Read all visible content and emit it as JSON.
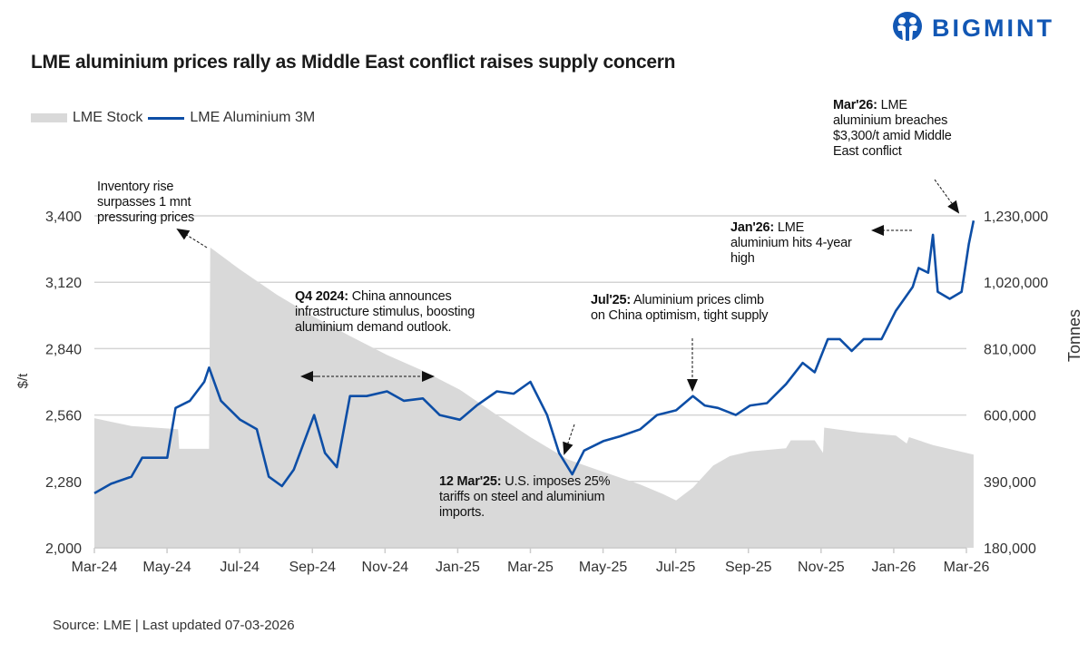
{
  "brand": {
    "name": "BIGMINT",
    "color": "#1257b4"
  },
  "title": "LME aluminium prices rally as Middle East conflict raises supply concern",
  "source": "Source: LME | Last updated 07-03-2026",
  "chart_data": {
    "type": "line+area",
    "title": "LME aluminium prices rally as Middle East conflict raises supply concern",
    "grid": true,
    "legend_placement": "top-left",
    "legend": [
      "LME Stock",
      "LME Aluminium 3M"
    ],
    "ylabel": "$/t",
    "y2label": "Tonnes",
    "ylim": [
      2000,
      3400
    ],
    "y2lim": [
      180000,
      1230000
    ],
    "yticks": [
      "2,000",
      "2,280",
      "2,560",
      "2,840",
      "3,120",
      "3,400"
    ],
    "y2ticks": [
      "180,000",
      "390,000",
      "600,000",
      "810,000",
      "1,020,000",
      "1,230,000"
    ],
    "xlim": [
      "2024-03-01",
      "2026-03-07"
    ],
    "xticks": [
      "Mar-24",
      "May-24",
      "Jul-24",
      "Sep-24",
      "Nov-24",
      "Jan-25",
      "Mar-25",
      "May-25",
      "Jul-25",
      "Sep-25",
      "Nov-25",
      "Jan-26",
      "Mar-26"
    ],
    "colors": {
      "price": "#0d4ea6",
      "stock": "#d9d9d9",
      "grid": "#d4d4d4"
    },
    "series": [
      {
        "name": "LME Aluminium 3M",
        "axis": "left",
        "kind": "line",
        "points": [
          [
            "2024-03-01",
            2230
          ],
          [
            "2024-03-15",
            2270
          ],
          [
            "2024-04-01",
            2300
          ],
          [
            "2024-04-10",
            2380
          ],
          [
            "2024-05-01",
            2380
          ],
          [
            "2024-05-08",
            2590
          ],
          [
            "2024-05-20",
            2620
          ],
          [
            "2024-06-01",
            2700
          ],
          [
            "2024-06-05",
            2760
          ],
          [
            "2024-06-15",
            2620
          ],
          [
            "2024-07-01",
            2540
          ],
          [
            "2024-07-15",
            2500
          ],
          [
            "2024-07-25",
            2300
          ],
          [
            "2024-08-05",
            2260
          ],
          [
            "2024-08-15",
            2330
          ],
          [
            "2024-09-01",
            2560
          ],
          [
            "2024-09-10",
            2400
          ],
          [
            "2024-09-20",
            2340
          ],
          [
            "2024-10-01",
            2640
          ],
          [
            "2024-10-15",
            2640
          ],
          [
            "2024-11-01",
            2660
          ],
          [
            "2024-11-15",
            2620
          ],
          [
            "2024-12-01",
            2630
          ],
          [
            "2024-12-15",
            2560
          ],
          [
            "2025-01-01",
            2540
          ],
          [
            "2025-01-15",
            2600
          ],
          [
            "2025-02-01",
            2660
          ],
          [
            "2025-02-15",
            2650
          ],
          [
            "2025-03-01",
            2700
          ],
          [
            "2025-03-15",
            2560
          ],
          [
            "2025-03-25",
            2400
          ],
          [
            "2025-04-05",
            2310
          ],
          [
            "2025-04-15",
            2410
          ],
          [
            "2025-05-01",
            2450
          ],
          [
            "2025-05-15",
            2470
          ],
          [
            "2025-06-01",
            2500
          ],
          [
            "2025-06-15",
            2560
          ],
          [
            "2025-07-01",
            2580
          ],
          [
            "2025-07-15",
            2640
          ],
          [
            "2025-07-25",
            2600
          ],
          [
            "2025-08-05",
            2590
          ],
          [
            "2025-08-20",
            2560
          ],
          [
            "2025-09-01",
            2600
          ],
          [
            "2025-09-15",
            2610
          ],
          [
            "2025-10-01",
            2690
          ],
          [
            "2025-10-15",
            2780
          ],
          [
            "2025-10-25",
            2740
          ],
          [
            "2025-11-05",
            2880
          ],
          [
            "2025-11-15",
            2880
          ],
          [
            "2025-11-25",
            2830
          ],
          [
            "2025-12-05",
            2880
          ],
          [
            "2025-12-20",
            2880
          ],
          [
            "2026-01-01",
            3000
          ],
          [
            "2026-01-15",
            3100
          ],
          [
            "2026-01-20",
            3180
          ],
          [
            "2026-01-28",
            3160
          ],
          [
            "2026-02-01",
            3320
          ],
          [
            "2026-02-05",
            3080
          ],
          [
            "2026-02-15",
            3050
          ],
          [
            "2026-02-25",
            3080
          ],
          [
            "2026-03-03",
            3280
          ],
          [
            "2026-03-07",
            3380
          ]
        ]
      },
      {
        "name": "LME Stock",
        "axis": "right",
        "kind": "area",
        "points": [
          [
            "2024-03-01",
            590000
          ],
          [
            "2024-04-01",
            565000
          ],
          [
            "2024-05-10",
            555000
          ],
          [
            "2024-05-11",
            493000
          ],
          [
            "2024-06-05",
            493000
          ],
          [
            "2024-06-06",
            1130000
          ],
          [
            "2024-07-01",
            1060000
          ],
          [
            "2024-08-01",
            980000
          ],
          [
            "2024-09-01",
            910000
          ],
          [
            "2024-10-01",
            850000
          ],
          [
            "2024-11-01",
            790000
          ],
          [
            "2024-12-01",
            740000
          ],
          [
            "2025-01-01",
            680000
          ],
          [
            "2025-02-01",
            600000
          ],
          [
            "2025-03-01",
            530000
          ],
          [
            "2025-04-01",
            460000
          ],
          [
            "2025-05-01",
            420000
          ],
          [
            "2025-06-01",
            380000
          ],
          [
            "2025-06-20",
            350000
          ],
          [
            "2025-07-01",
            330000
          ],
          [
            "2025-07-15",
            370000
          ],
          [
            "2025-08-01",
            440000
          ],
          [
            "2025-08-15",
            470000
          ],
          [
            "2025-09-01",
            485000
          ],
          [
            "2025-10-01",
            495000
          ],
          [
            "2025-10-05",
            520000
          ],
          [
            "2025-10-25",
            520000
          ],
          [
            "2025-11-01",
            480000
          ],
          [
            "2025-11-02",
            560000
          ],
          [
            "2025-12-01",
            545000
          ],
          [
            "2026-01-01",
            535000
          ],
          [
            "2026-01-10",
            510000
          ],
          [
            "2026-01-12",
            530000
          ],
          [
            "2026-02-01",
            505000
          ],
          [
            "2026-03-07",
            475000
          ]
        ]
      }
    ],
    "annotations": [
      {
        "bold": "",
        "text": "Inventory rise surpasses 1 mnt pressuring prices"
      },
      {
        "bold": "Q4 2024:",
        "text": " China announces infrastructure stimulus, boosting aluminium demand outlook."
      },
      {
        "bold": "12 Mar'25:",
        "text": " U.S. imposes 25% tariffs on steel and aluminium imports."
      },
      {
        "bold": "Jul'25:",
        "text": " Aluminium prices climb on China optimism, tight supply"
      },
      {
        "bold": "Jan'26:",
        "text": " LME aluminium hits 4-year high"
      },
      {
        "bold": "Mar'26:",
        "text": " LME aluminium breaches $3,300/t amid Middle East conflict"
      }
    ]
  }
}
